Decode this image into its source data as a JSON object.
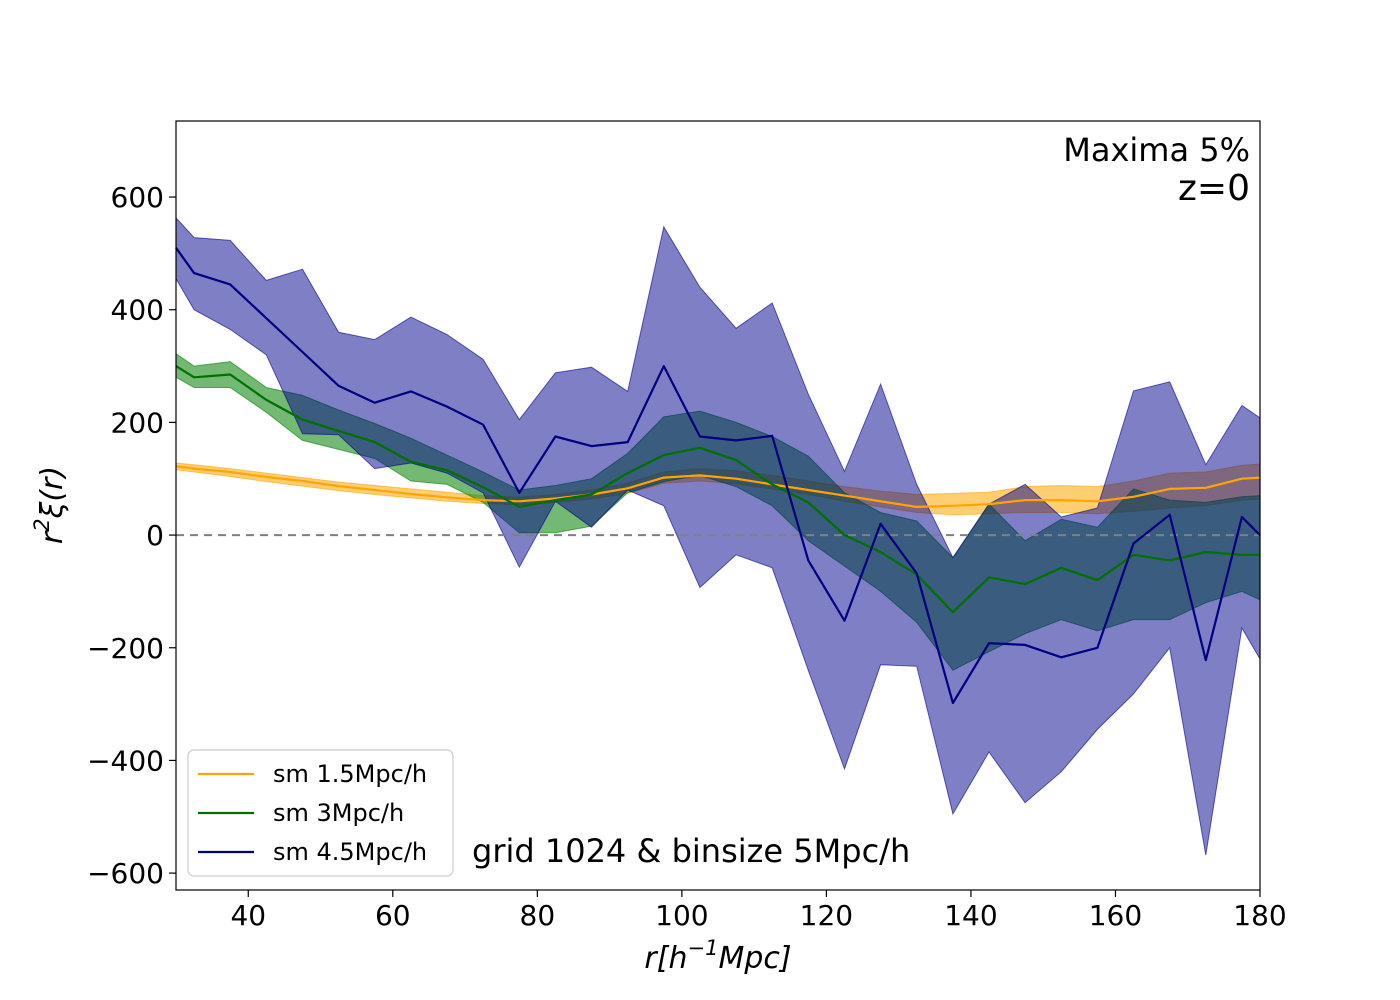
{
  "chart_data": {
    "type": "line",
    "title": "",
    "xlabel_base": "r[h",
    "xlabel_sup": "−1",
    "xlabel_end": "Mpc]",
    "ylabel_base": "r",
    "ylabel_sup": "2",
    "ylabel_end": "ξ(r)",
    "xlim": [
      30,
      180
    ],
    "ylim": [
      -630,
      735
    ],
    "xticks": [
      40,
      60,
      80,
      100,
      120,
      140,
      160,
      180
    ],
    "yticks": [
      -600,
      -400,
      -200,
      0,
      200,
      400,
      600
    ],
    "ytick_labels": [
      "−600",
      "−400",
      "−200",
      "0",
      "200",
      "400",
      "600"
    ],
    "reference_line": 0,
    "annotation_top_1": "Maxima 5%",
    "annotation_top_2": "z=0",
    "annotation_bottom": "grid 1024 & binsize 5Mpc/h",
    "legend_position": "lower-left",
    "x": [
      30,
      32.5,
      37.5,
      42.5,
      47.5,
      52.5,
      57.5,
      62.5,
      67.5,
      72.5,
      77.5,
      82.5,
      87.5,
      92.5,
      97.5,
      102.5,
      107.5,
      112.5,
      117.5,
      122.5,
      127.5,
      132.5,
      137.5,
      142.5,
      147.5,
      152.5,
      157.5,
      162.5,
      167.5,
      172.5,
      177.5,
      180
    ],
    "series": [
      {
        "name": "sm 1.5Mpc/h",
        "color": "#ffa500",
        "band_color": "#ffa500",
        "band_opacity": 0.55,
        "values": [
          122,
          118,
          112,
          103,
          96,
          87,
          80,
          73,
          67,
          62,
          60,
          65,
          72,
          83,
          102,
          106,
          100,
          90,
          80,
          70,
          60,
          50,
          52,
          55,
          62,
          62,
          60,
          68,
          82,
          84,
          100,
          102
        ],
        "lower": [
          116,
          112,
          104,
          95,
          87,
          79,
          72,
          66,
          60,
          56,
          54,
          58,
          64,
          74,
          92,
          96,
          91,
          82,
          72,
          60,
          50,
          40,
          36,
          38,
          40,
          40,
          38,
          42,
          48,
          52,
          62,
          64
        ],
        "upper": [
          128,
          125,
          118,
          110,
          102,
          94,
          88,
          82,
          76,
          70,
          67,
          72,
          80,
          92,
          112,
          118,
          114,
          106,
          96,
          86,
          78,
          72,
          74,
          76,
          86,
          88,
          86,
          96,
          110,
          112,
          124,
          126
        ]
      },
      {
        "name": "sm 3Mpc/h",
        "color": "#007000",
        "band_color": "#008000",
        "band_opacity": 0.55,
        "values": [
          300,
          280,
          285,
          240,
          205,
          185,
          165,
          130,
          115,
          85,
          50,
          62,
          72,
          110,
          142,
          155,
          133,
          90,
          58,
          0,
          -30,
          -70,
          -137,
          -75,
          -87,
          -58,
          -80,
          -35,
          -45,
          -30,
          -35,
          -35
        ],
        "lower": [
          280,
          262,
          262,
          218,
          168,
          152,
          136,
          96,
          90,
          58,
          4,
          4,
          16,
          75,
          95,
          106,
          86,
          52,
          -10,
          -55,
          -100,
          -155,
          -240,
          -207,
          -175,
          -150,
          -170,
          -150,
          -150,
          -120,
          -100,
          -115
        ],
        "upper": [
          322,
          300,
          308,
          262,
          248,
          222,
          198,
          172,
          142,
          112,
          80,
          88,
          100,
          145,
          210,
          220,
          200,
          175,
          140,
          75,
          40,
          25,
          -40,
          55,
          -10,
          28,
          14,
          82,
          62,
          58,
          68,
          70
        ]
      },
      {
        "name": "sm 4.5Mpc/h",
        "color": "#000080",
        "band_color": "#00008b",
        "band_opacity": 0.5,
        "values": [
          510,
          465,
          445,
          385,
          325,
          265,
          235,
          255,
          228,
          196,
          75,
          175,
          158,
          165,
          300,
          175,
          168,
          176,
          -45,
          -152,
          20,
          -68,
          -298,
          -192,
          -195,
          -217,
          -200,
          -15,
          36,
          -222,
          32,
          0
        ],
        "lower": [
          455,
          400,
          365,
          320,
          180,
          178,
          118,
          128,
          110,
          75,
          -57,
          60,
          14,
          80,
          52,
          -93,
          -35,
          -58,
          -240,
          -415,
          -230,
          -233,
          -495,
          -385,
          -475,
          -420,
          -345,
          -282,
          -200,
          -568,
          -165,
          -220
        ],
        "upper": [
          563,
          528,
          523,
          452,
          472,
          360,
          347,
          387,
          356,
          312,
          205,
          288,
          298,
          255,
          547,
          440,
          367,
          412,
          250,
          113,
          268,
          90,
          -40,
          55,
          90,
          32,
          48,
          256,
          272,
          125,
          230,
          208
        ]
      }
    ]
  }
}
